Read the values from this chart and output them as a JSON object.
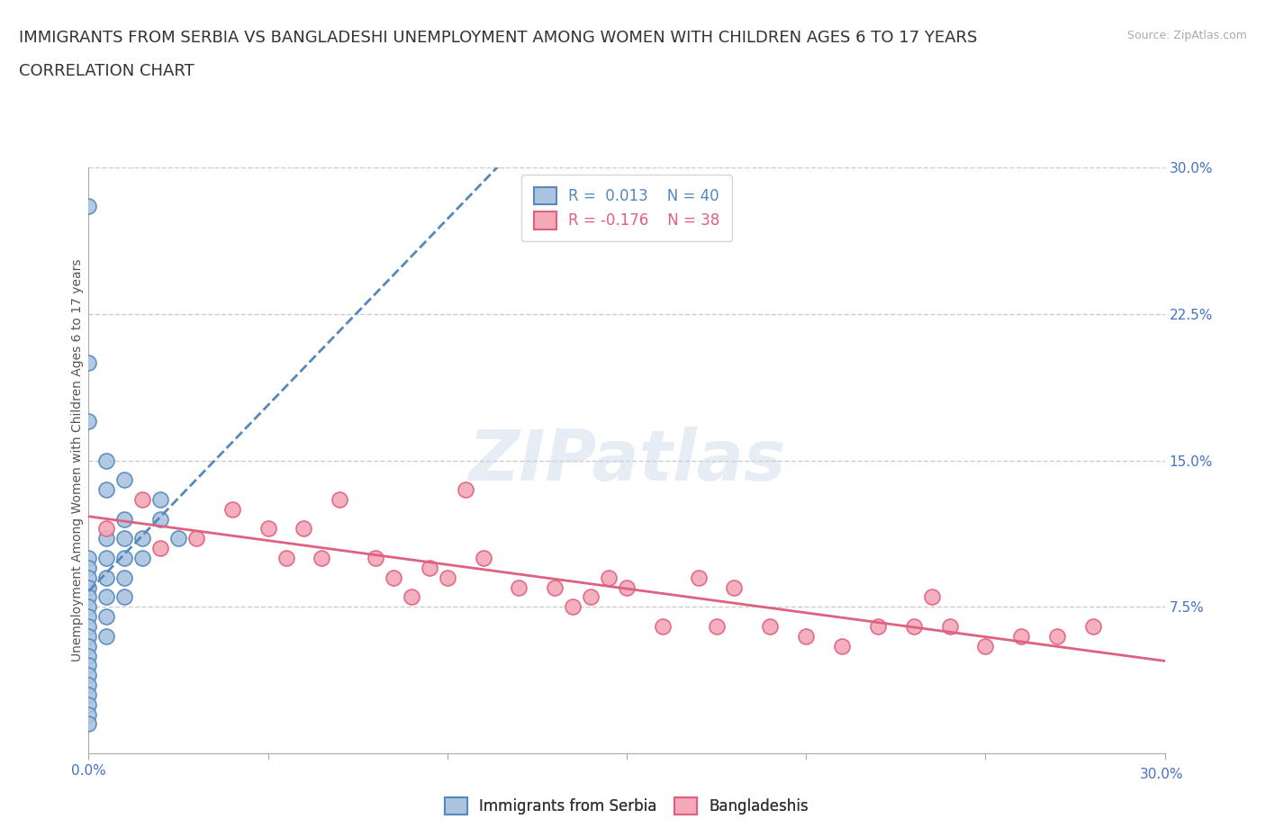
{
  "title_line1": "IMMIGRANTS FROM SERBIA VS BANGLADESHI UNEMPLOYMENT AMONG WOMEN WITH CHILDREN AGES 6 TO 17 YEARS",
  "title_line2": "CORRELATION CHART",
  "source_text": "Source: ZipAtlas.com",
  "ylabel": "Unemployment Among Women with Children Ages 6 to 17 years",
  "xlim": [
    0.0,
    0.3
  ],
  "ylim": [
    0.0,
    0.3
  ],
  "x_ticks": [
    0.0,
    0.05,
    0.1,
    0.15,
    0.2,
    0.25,
    0.3
  ],
  "y_ticks_right": [
    0.075,
    0.15,
    0.225,
    0.3
  ],
  "watermark": "ZIPatlas",
  "serbia_color": "#aac4e0",
  "bangladesh_color": "#f4a8b8",
  "serbia_line_color": "#5588bb",
  "bangladesh_line_color": "#e06080",
  "R_serbia": 0.013,
  "N_serbia": 40,
  "R_bangladesh": -0.176,
  "N_bangladesh": 38,
  "serbia_x": [
    0.0,
    0.0,
    0.0,
    0.0,
    0.0,
    0.0,
    0.0,
    0.0,
    0.0,
    0.0,
    0.0,
    0.0,
    0.0,
    0.0,
    0.0,
    0.0,
    0.0,
    0.0,
    0.005,
    0.005,
    0.005,
    0.005,
    0.005,
    0.005,
    0.01,
    0.01,
    0.01,
    0.01,
    0.01,
    0.015,
    0.015,
    0.02,
    0.02,
    0.025,
    0.0,
    0.0,
    0.0,
    0.005,
    0.01,
    0.005
  ],
  "serbia_y": [
    0.1,
    0.095,
    0.09,
    0.085,
    0.08,
    0.075,
    0.07,
    0.065,
    0.06,
    0.055,
    0.05,
    0.045,
    0.04,
    0.035,
    0.03,
    0.025,
    0.02,
    0.015,
    0.11,
    0.1,
    0.09,
    0.08,
    0.07,
    0.06,
    0.12,
    0.11,
    0.1,
    0.09,
    0.08,
    0.11,
    0.1,
    0.13,
    0.12,
    0.11,
    0.28,
    0.2,
    0.17,
    0.15,
    0.14,
    0.135
  ],
  "bangladesh_x": [
    0.005,
    0.015,
    0.02,
    0.03,
    0.04,
    0.05,
    0.055,
    0.06,
    0.065,
    0.07,
    0.08,
    0.085,
    0.09,
    0.095,
    0.1,
    0.105,
    0.11,
    0.12,
    0.13,
    0.135,
    0.14,
    0.145,
    0.15,
    0.16,
    0.17,
    0.175,
    0.18,
    0.19,
    0.2,
    0.21,
    0.22,
    0.23,
    0.235,
    0.24,
    0.25,
    0.26,
    0.27,
    0.28
  ],
  "bangladesh_y": [
    0.115,
    0.13,
    0.105,
    0.11,
    0.125,
    0.115,
    0.1,
    0.115,
    0.1,
    0.13,
    0.1,
    0.09,
    0.08,
    0.095,
    0.09,
    0.135,
    0.1,
    0.085,
    0.085,
    0.075,
    0.08,
    0.09,
    0.085,
    0.065,
    0.09,
    0.065,
    0.085,
    0.065,
    0.06,
    0.055,
    0.065,
    0.065,
    0.08,
    0.065,
    0.055,
    0.06,
    0.06,
    0.065
  ],
  "grid_color": "#cccccc",
  "background_color": "#ffffff",
  "title_fontsize": 13,
  "subtitle_fontsize": 13,
  "axis_label_fontsize": 10,
  "tick_fontsize": 11,
  "legend_fontsize": 12,
  "right_tick_color": "#4472c4"
}
